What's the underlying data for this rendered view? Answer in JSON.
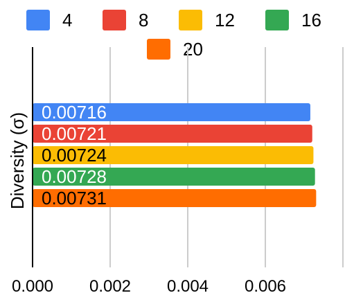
{
  "chart_data": {
    "type": "bar",
    "orientation": "horizontal",
    "title": "",
    "ylabel": "Diversity (σ)",
    "xlabel": "",
    "xlim": [
      0,
      0.008
    ],
    "x_ticks": [
      "0.000",
      "0.002",
      "0.004",
      "0.006"
    ],
    "grid": true,
    "legend_position": "top",
    "series": [
      {
        "name": "4",
        "value": 0.00716,
        "label": "0.00716",
        "color": "#4285F4",
        "label_color": "#ffffff"
      },
      {
        "name": "8",
        "value": 0.00721,
        "label": "0.00721",
        "color": "#EA4335",
        "label_color": "#ffffff"
      },
      {
        "name": "12",
        "value": 0.00724,
        "label": "0.00724",
        "color": "#FBBC04",
        "label_color": "#000000"
      },
      {
        "name": "16",
        "value": 0.00728,
        "label": "0.00728",
        "color": "#34A853",
        "label_color": "#ffffff"
      },
      {
        "name": "20",
        "value": 0.00731,
        "label": "0.00731",
        "color": "#FF6D01",
        "label_color": "#000000"
      }
    ]
  }
}
